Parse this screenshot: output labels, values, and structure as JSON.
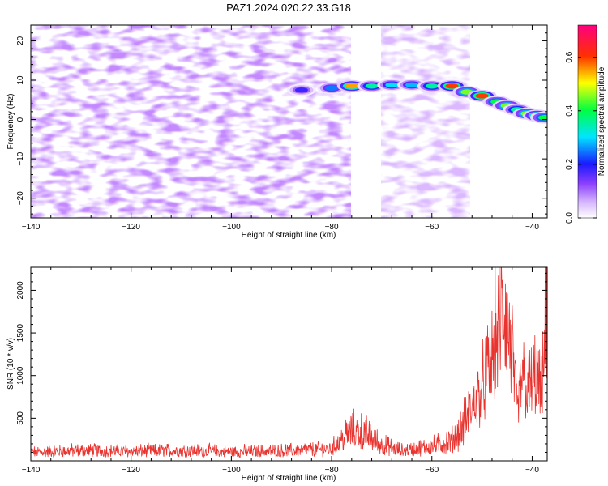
{
  "chart_data": [
    {
      "type": "heatmap",
      "title": "PAZ1.2024.020.22.33.G18",
      "xlabel": "Height of straight line (km)",
      "ylabel": "Frequency (Hz)",
      "xlim": [
        -140,
        -37
      ],
      "ylim": [
        -25,
        24
      ],
      "xticks": [
        -140,
        -120,
        -100,
        -80,
        -60,
        -40
      ],
      "yticks": [
        -20,
        -10,
        0,
        10,
        20
      ],
      "grid": false,
      "colorbar": {
        "label": "Normalized spectral amplitude",
        "range": [
          0,
          0.72
        ],
        "ticks": [
          0.0,
          0.2,
          0.4,
          0.6
        ],
        "tick_labels": [
          "0.0",
          "0.2",
          "0.4",
          "0.6"
        ],
        "colormap": "white-purple-blue-cyan-green-yellow-red-magenta"
      },
      "signal_ridge": [
        {
          "x": -86,
          "y": 7.5,
          "amplitude": 0.18
        },
        {
          "x": -80,
          "y": 8.0,
          "amplitude": 0.25
        },
        {
          "x": -76,
          "y": 8.5,
          "amplitude": 0.55
        },
        {
          "x": -72,
          "y": 8.5,
          "amplitude": 0.35
        },
        {
          "x": -68,
          "y": 8.8,
          "amplitude": 0.3
        },
        {
          "x": -64,
          "y": 8.8,
          "amplitude": 0.28
        },
        {
          "x": -60,
          "y": 8.5,
          "amplitude": 0.35
        },
        {
          "x": -56,
          "y": 8.5,
          "amplitude": 0.6
        },
        {
          "x": -53,
          "y": 7.0,
          "amplitude": 0.45
        },
        {
          "x": -50,
          "y": 6.0,
          "amplitude": 0.6
        },
        {
          "x": -47,
          "y": 4.5,
          "amplitude": 0.4
        },
        {
          "x": -45,
          "y": 3.5,
          "amplitude": 0.45
        },
        {
          "x": -43,
          "y": 2.5,
          "amplitude": 0.35
        },
        {
          "x": -41,
          "y": 1.5,
          "amplitude": 0.45
        },
        {
          "x": -39,
          "y": 1.0,
          "amplitude": 0.5
        },
        {
          "x": -37.5,
          "y": 0.5,
          "amplitude": 0.4
        }
      ]
    },
    {
      "type": "line",
      "xlabel": "Height of straight line (km)",
      "ylabel": "SNR (10 * v/v)",
      "xlim": [
        -140,
        -37
      ],
      "ylim": [
        0,
        2270
      ],
      "xticks": [
        -140,
        -120,
        -100,
        -80,
        -60,
        -40
      ],
      "yticks": [
        500,
        1000,
        1500,
        2000
      ],
      "grid": false,
      "line_color": "#e8332f",
      "series": [
        {
          "x": [
            -140,
            -130,
            -120,
            -110,
            -100,
            -90,
            -80,
            -77,
            -75,
            -73,
            -70,
            -66,
            -60,
            -56,
            -54,
            -52,
            -50,
            -49,
            -48,
            -47,
            -46,
            -45.5,
            -45,
            -44,
            -43,
            -42,
            -41,
            -40,
            -39,
            -38.5,
            -38,
            -37.5,
            -37
          ],
          "values": [
            110,
            130,
            120,
            130,
            115,
            125,
            150,
            330,
            380,
            330,
            200,
            130,
            180,
            250,
            400,
            700,
            900,
            1100,
            1300,
            1600,
            1900,
            1950,
            1700,
            1400,
            600,
            1100,
            900,
            1000,
            1050,
            900,
            850,
            1400,
            2250
          ]
        }
      ]
    }
  ]
}
